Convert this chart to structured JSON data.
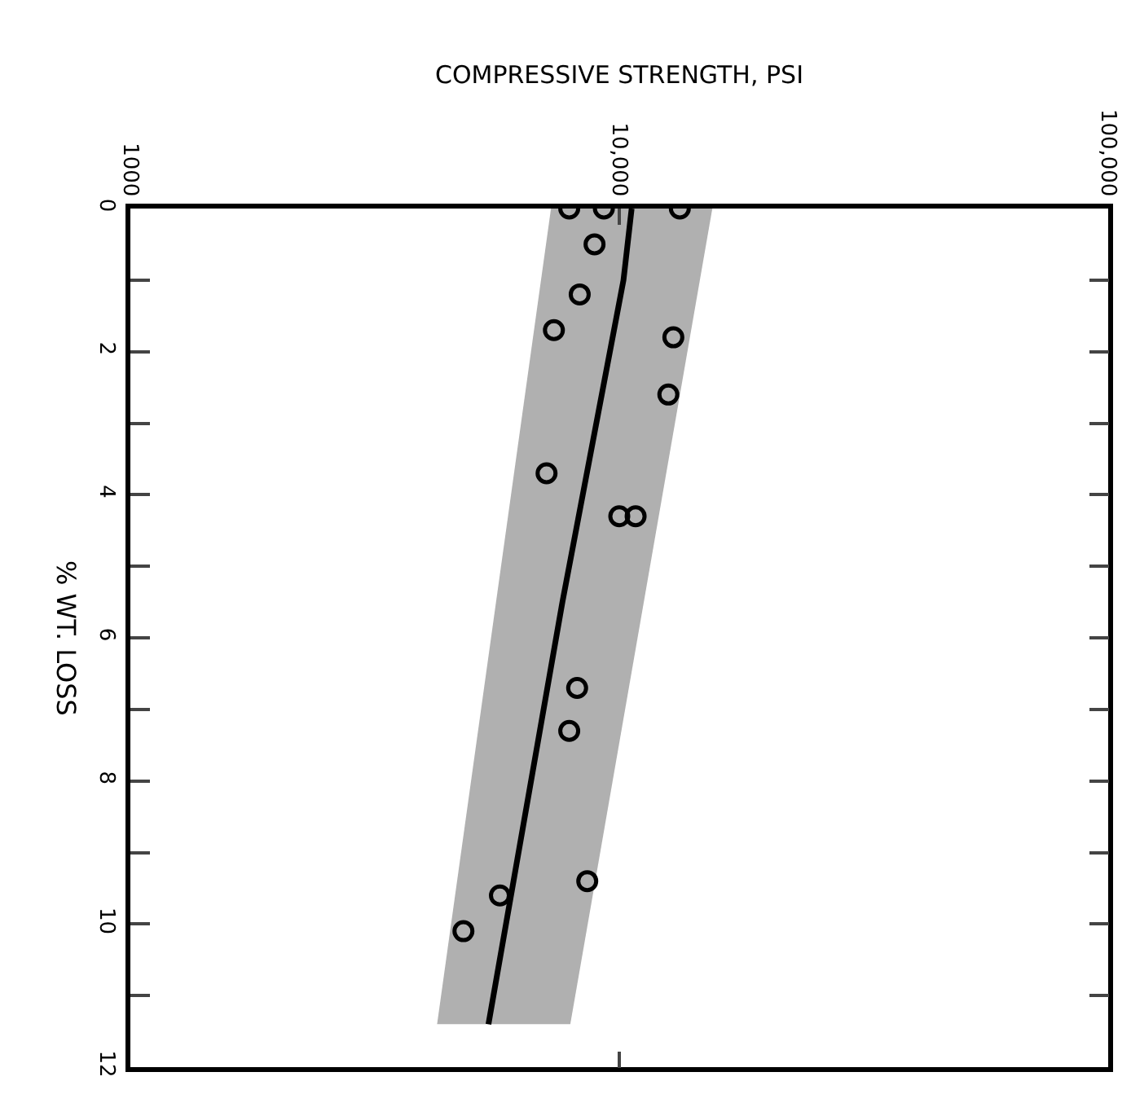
{
  "chart_data": {
    "type": "scatter",
    "xlabel": "COMPRESSIVE STRENGTH, PSI",
    "ylabel": "% WT. LOSS",
    "log": "x",
    "xlim": [
      1000,
      100000
    ],
    "xticks": [
      1000,
      {
        "value": 10000,
        "label": "10,000"
      },
      {
        "value": 100000,
        "label": "100,000"
      }
    ],
    "ylim": [
      12,
      0
    ],
    "yticks": [
      0,
      {
        "value": 1,
        "label": null
      },
      2,
      {
        "value": 3,
        "label": null
      },
      4,
      {
        "value": 5,
        "label": null
      },
      6,
      {
        "value": 7,
        "label": null
      },
      8,
      {
        "value": 9,
        "label": null
      },
      10,
      {
        "value": 11,
        "label": null
      },
      12
    ],
    "grid": false,
    "series": [
      {
        "type": "area",
        "color": "#b0b0b0",
        "x": [
          7250,
          4240,
          7940,
          15500
        ],
        "values": [
          0,
          11.4,
          11.4,
          0
        ]
      },
      {
        "type": "line",
        "color": "#000000",
        "line_style": "solid",
        "marker": "none",
        "x": [
          10600,
          10200,
          7650,
          5400
        ],
        "values": [
          0,
          1,
          5.5,
          11.4
        ]
      },
      {
        "color": "#000000",
        "marker": "circle",
        "x": [
          7900,
          9300,
          13300,
          8900,
          8300,
          7350,
          12900,
          12600,
          7100,
          10000,
          10800,
          8200,
          7900,
          8600,
          5700,
          4800
        ],
        "values": [
          0,
          0,
          0,
          0.5,
          1.2,
          1.7,
          1.8,
          2.6,
          3.7,
          4.3,
          4.3,
          6.7,
          7.3,
          9.4,
          9.6,
          10.1
        ]
      }
    ]
  }
}
